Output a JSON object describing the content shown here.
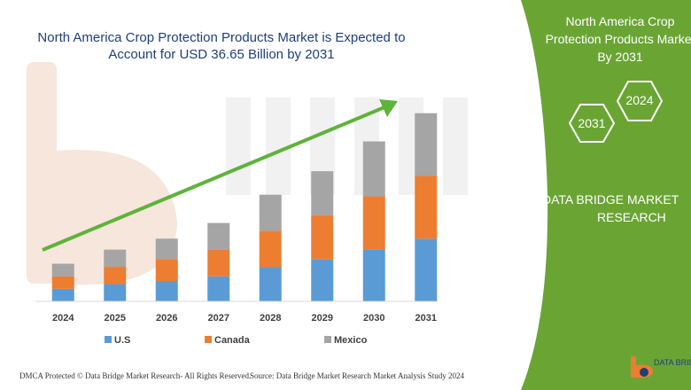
{
  "chart_title": "North America Crop Protection Products Market is Expected to Account for USD 36.65 Billion by 2031",
  "chart_data": {
    "type": "bar",
    "stacked": true,
    "title": "North America Crop Protection Products Market is Expected to Account for USD 36.65 Billion by 2031",
    "categories": [
      "2024",
      "2025",
      "2026",
      "2027",
      "2028",
      "2029",
      "2030",
      "2031"
    ],
    "series": [
      {
        "name": "U.S",
        "color": "#5b9bd5",
        "values": [
          8,
          11,
          13,
          16,
          22,
          27,
          33,
          40
        ]
      },
      {
        "name": "Canada",
        "color": "#ed7d31",
        "values": [
          8,
          11,
          14,
          17,
          23,
          28,
          34,
          40
        ]
      },
      {
        "name": "Mexico",
        "color": "#a5a5a5",
        "values": [
          8,
          11,
          13,
          17,
          23,
          28,
          35,
          40
        ]
      }
    ],
    "ylim": [
      0,
      130
    ],
    "grid": false,
    "legend_position": "bottom",
    "trend_arrow": true
  },
  "panel": {
    "title_line1": "North America Crop",
    "title_line2": "Protection Products Market",
    "title_line3": "By 2031",
    "hex_start": "2024",
    "hex_end": "2031",
    "brand_line1": "DATA BRIDGE MARKET",
    "brand_line2": "RESEARCH",
    "color": "#6aa534"
  },
  "footer": {
    "left": "DMCA Protected © Data Bridge Market Research- All Rights Reserved.",
    "right": "Source: Data Bridge Market Research Market Analysis Study 2024",
    "logo_text": "DATA BRIDGE"
  },
  "arrow_color": "#5fb23a"
}
